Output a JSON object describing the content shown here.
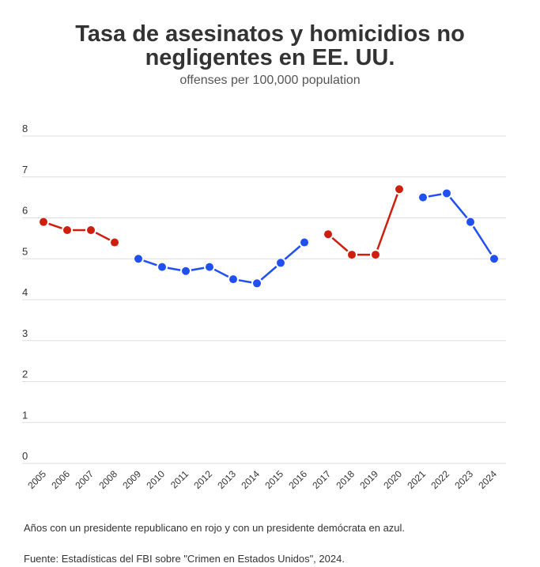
{
  "chart_data": {
    "type": "line",
    "title_line1": "Tasa de asesinatos y homicidios no",
    "title_line2": "negligentes en EE. UU.",
    "subtitle": "offenses per 100,000 population",
    "x": [
      "2005",
      "2006",
      "2007",
      "2008",
      "2009",
      "2010",
      "2011",
      "2012",
      "2013",
      "2014",
      "2015",
      "2016",
      "2017",
      "2018",
      "2019",
      "2020",
      "2021",
      "2022",
      "2023",
      "2024"
    ],
    "values": [
      5.9,
      5.7,
      5.7,
      5.4,
      5.0,
      4.8,
      4.7,
      4.8,
      4.5,
      4.4,
      4.9,
      5.4,
      5.6,
      5.1,
      5.1,
      6.7,
      6.5,
      6.6,
      5.9,
      5.0
    ],
    "party": [
      "R",
      "R",
      "R",
      "R",
      "D",
      "D",
      "D",
      "D",
      "D",
      "D",
      "D",
      "D",
      "R",
      "R",
      "R",
      "R",
      "D",
      "D",
      "D",
      "D"
    ],
    "colors": {
      "R": "#cc1f0e",
      "D": "#2150f0"
    },
    "yticks": [
      "0",
      "1",
      "2",
      "3",
      "4",
      "5",
      "6",
      "7",
      "8"
    ],
    "ylim": [
      0,
      8
    ],
    "grid": true
  },
  "notes": {
    "legend": "Años con un presidente republicano en rojo y con un presidente demócrata en azul.",
    "source": "Fuente: Estadísticas del FBI sobre \"Crimen en Estados Unidos\", 2024."
  }
}
